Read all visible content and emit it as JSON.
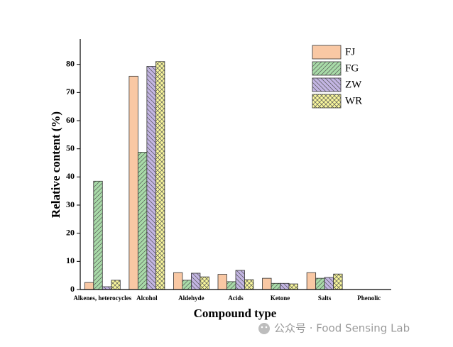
{
  "chart_data": {
    "type": "bar",
    "x_label": "Compound type",
    "y_label": "Relative content (%)",
    "categories": [
      "Alkenes, heterocycles",
      "Alcohol",
      "Aldehyde",
      "Acids",
      "Ketone",
      "Salts",
      "Phenolic"
    ],
    "series": [
      {
        "name": "FJ",
        "color": "#f9c8a4",
        "hatch": "none",
        "values": [
          2.5,
          75.8,
          6,
          5.4,
          4,
          6,
          0
        ]
      },
      {
        "name": "FG",
        "color": "#a8dba8",
        "hatch": "/",
        "values": [
          38.5,
          48.8,
          3.3,
          2.8,
          2.2,
          4,
          0
        ]
      },
      {
        "name": "ZW",
        "color": "#c3b5e3",
        "hatch": "\\",
        "values": [
          1,
          79.3,
          5.8,
          6.8,
          2.2,
          4.3,
          0
        ]
      },
      {
        "name": "WR",
        "color": "#f9f79c",
        "hatch": "x",
        "values": [
          3.3,
          81,
          4.5,
          3.5,
          2,
          5.5,
          0
        ]
      }
    ],
    "ylim": [
      0,
      89
    ],
    "yticks": [
      0,
      10,
      20,
      30,
      40,
      50,
      60,
      70,
      80
    ],
    "legend": "upper right",
    "watermark": "公众号 · Food Sensing Lab"
  }
}
